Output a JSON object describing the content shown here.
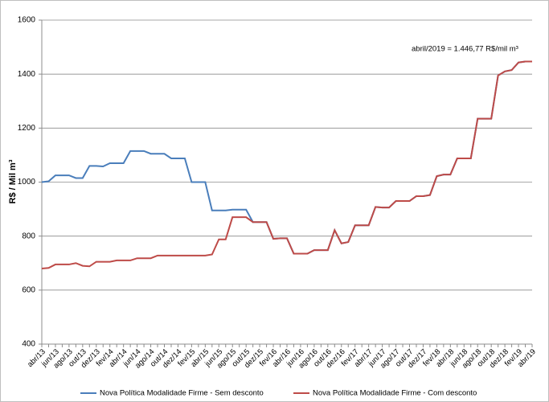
{
  "chart_data": {
    "type": "line",
    "y_label": "R$ / Mil m³",
    "annotation": "abril/2019 =   1.446,77   R$/mil m³",
    "categories": [
      "abr/13",
      null,
      "jun/13",
      null,
      "ago/13",
      null,
      "out/13",
      null,
      "dez/13",
      null,
      "fev/14",
      null,
      "abr/14",
      null,
      "jun/14",
      null,
      "ago/14",
      null,
      "out/14",
      null,
      "dez/14",
      null,
      "fev/15",
      null,
      "abr/15",
      null,
      "jun/15",
      null,
      "ago/15",
      null,
      "out/15",
      null,
      "dez/15",
      null,
      "fev/16",
      null,
      "abr/16",
      null,
      "jun/16",
      null,
      "ago/16",
      null,
      "out/16",
      null,
      "dez/16",
      null,
      "fev/17",
      null,
      "abr/17",
      null,
      "jun/17",
      null,
      "ago/17",
      null,
      "out/17",
      null,
      "dez/17",
      null,
      "fev/18",
      null,
      "abr/18",
      null,
      "jun/18",
      null,
      "ago/18",
      null,
      "out/18",
      null,
      "dez/18",
      null,
      "fev/19",
      null,
      "abr/19"
    ],
    "series": [
      {
        "name": "Nova Política Modalidade Firme - Sem desconto",
        "color": "#4a7ebb",
        "values": [
          1000,
          1003,
          1025,
          1025,
          1025,
          1015,
          1015,
          1060,
          1060,
          1058,
          1070,
          1070,
          1070,
          1115,
          1115,
          1115,
          1105,
          1105,
          1105,
          1088,
          1088,
          1088,
          1000,
          1000,
          1000,
          895,
          895,
          895,
          898,
          898,
          898,
          852,
          852,
          852,
          790,
          792,
          792,
          735,
          735,
          735,
          748,
          748,
          748,
          822,
          773,
          778,
          840,
          840,
          840,
          908,
          906,
          906,
          930,
          930,
          930,
          948,
          948,
          952,
          1022,
          1028,
          1028,
          1088,
          1088,
          1088,
          1235,
          1235,
          1235,
          1395,
          1410,
          1415,
          1443,
          1446.77,
          1446.77
        ]
      },
      {
        "name": "Nova Política Modalidade Firme - Com desconto",
        "color": "#be4b48",
        "values": [
          680,
          682,
          695,
          695,
          695,
          700,
          690,
          688,
          705,
          705,
          705,
          710,
          710,
          710,
          718,
          718,
          718,
          728,
          728,
          728,
          728,
          728,
          728,
          728,
          728,
          732,
          788,
          788,
          870,
          870,
          870,
          852,
          852,
          852,
          790,
          792,
          792,
          735,
          735,
          735,
          748,
          748,
          748,
          822,
          773,
          778,
          840,
          840,
          840,
          908,
          906,
          906,
          930,
          930,
          930,
          948,
          948,
          952,
          1022,
          1028,
          1028,
          1088,
          1088,
          1088,
          1235,
          1235,
          1235,
          1395,
          1410,
          1415,
          1443,
          1446.77,
          1446.77
        ]
      }
    ],
    "ylim": [
      400,
      1600
    ],
    "yticks": [
      400,
      600,
      800,
      1000,
      1200,
      1400,
      1600
    ],
    "grid": true
  }
}
